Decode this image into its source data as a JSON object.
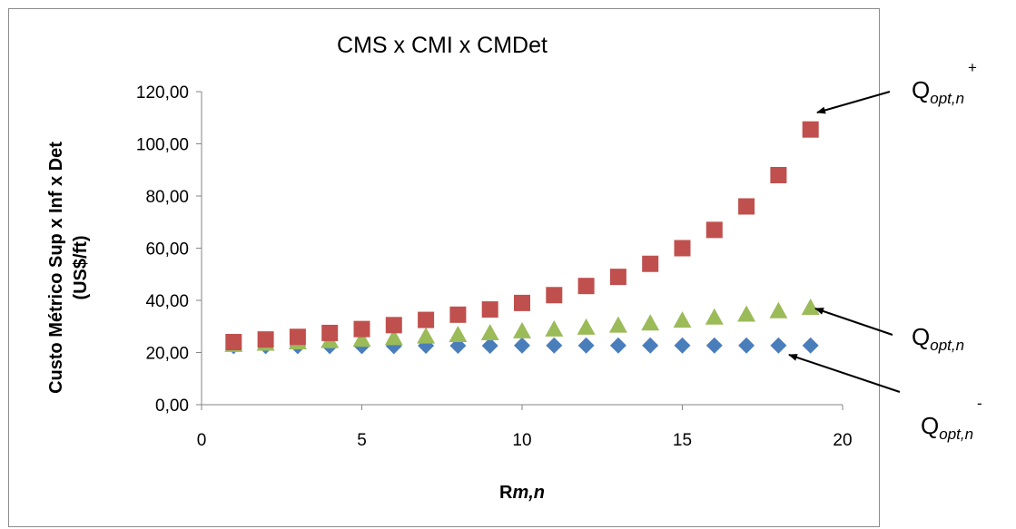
{
  "chart_data": {
    "type": "scatter",
    "title": "CMS x CMI x CMDet",
    "xlabel": {
      "prefix": "R",
      "italic": "m,n"
    },
    "ylabel": [
      "Custo Métrico Sup x Inf x Det",
      "(US$/ft)"
    ],
    "xlim": [
      0,
      20
    ],
    "ylim": [
      0,
      120
    ],
    "xticks": [
      0,
      5,
      10,
      15,
      20
    ],
    "yticks": [
      0,
      20,
      40,
      60,
      80,
      100,
      120
    ],
    "ytick_labels": [
      "0,00",
      "20,00",
      "40,00",
      "60,00",
      "80,00",
      "100,00",
      "120,00"
    ],
    "grid": false,
    "x": [
      1,
      2,
      3,
      4,
      5,
      6,
      7,
      8,
      9,
      10,
      11,
      12,
      13,
      14,
      15,
      16,
      17,
      18,
      19
    ],
    "series": [
      {
        "marker": "diamond",
        "color": "#4a7ebb",
        "values": [
          22.5,
          22.5,
          22.5,
          22.5,
          22.5,
          22.5,
          22.6,
          22.6,
          22.6,
          22.7,
          22.7,
          22.7,
          22.7,
          22.7,
          22.7,
          22.7,
          22.7,
          22.7,
          22.7
        ]
      },
      {
        "marker": "triangle",
        "color": "#9bbb59",
        "values": [
          23.0,
          23.5,
          24.0,
          24.5,
          25.0,
          25.6,
          26.2,
          26.8,
          27.5,
          28.2,
          28.9,
          29.6,
          30.4,
          31.2,
          32.3,
          33.5,
          34.6,
          35.9,
          37.2
        ]
      },
      {
        "marker": "square",
        "color": "#c0504d",
        "values": [
          24.0,
          25.0,
          26.0,
          27.5,
          29.0,
          30.5,
          32.5,
          34.5,
          36.5,
          39.0,
          42.0,
          45.5,
          49.0,
          54.0,
          60.0,
          67.0,
          76.0,
          88.0,
          105.5
        ]
      }
    ]
  },
  "annotations": [
    {
      "base": "Q",
      "sub": "opt,n",
      "sup": "+"
    },
    {
      "base": "Q",
      "sub": "opt,n",
      "sup": ""
    },
    {
      "base": "Q",
      "sub": "opt,n",
      "sup": "-"
    }
  ]
}
